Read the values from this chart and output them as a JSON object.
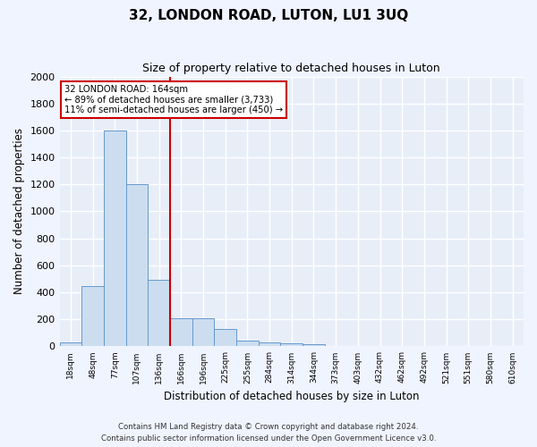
{
  "title": "32, LONDON ROAD, LUTON, LU1 3UQ",
  "subtitle": "Size of property relative to detached houses in Luton",
  "xlabel": "Distribution of detached houses by size in Luton",
  "ylabel": "Number of detached properties",
  "footnote1": "Contains HM Land Registry data © Crown copyright and database right 2024.",
  "footnote2": "Contains public sector information licensed under the Open Government Licence v3.0.",
  "bar_color": "#ccddf0",
  "bar_edge_color": "#6699cc",
  "bins": [
    "18sqm",
    "48sqm",
    "77sqm",
    "107sqm",
    "136sqm",
    "166sqm",
    "196sqm",
    "225sqm",
    "255sqm",
    "284sqm",
    "314sqm",
    "344sqm",
    "373sqm",
    "403sqm",
    "432sqm",
    "462sqm",
    "492sqm",
    "521sqm",
    "551sqm",
    "580sqm",
    "610sqm"
  ],
  "values": [
    30,
    450,
    1600,
    1200,
    490,
    210,
    210,
    130,
    45,
    30,
    20,
    15,
    0,
    0,
    0,
    0,
    0,
    0,
    0,
    0,
    0
  ],
  "subject_bin_idx": 4,
  "subject_size": "164sqm",
  "subject_address": "32 LONDON ROAD",
  "pct_smaller": 89,
  "count_smaller": 3733,
  "pct_larger": 11,
  "count_larger": 450,
  "ylim": [
    0,
    2000
  ],
  "yticks": [
    0,
    200,
    400,
    600,
    800,
    1000,
    1200,
    1400,
    1600,
    1800,
    2000
  ],
  "annotation_box_color": "#ffffff",
  "annotation_box_edge": "#cc0000",
  "vline_color": "#cc0000",
  "bg_color": "#e8eef8",
  "grid_color": "#ffffff",
  "fig_bg_color": "#f0f4ff"
}
